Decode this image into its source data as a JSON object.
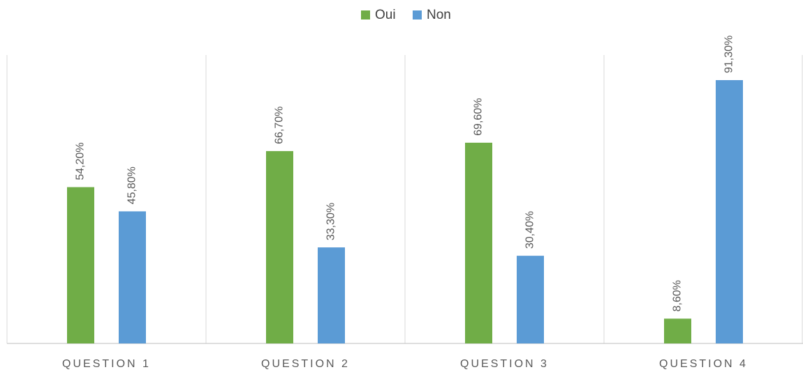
{
  "chart_data": {
    "type": "bar",
    "categories": [
      "QUESTION 1",
      "QUESTION 2",
      "QUESTION 3",
      "QUESTION 4"
    ],
    "series": [
      {
        "name": "Oui",
        "color": "#70ad47",
        "values": [
          54.2,
          66.7,
          69.6,
          8.6
        ],
        "value_labels": [
          "54,20%",
          "66,70%",
          "69,60%",
          "8,60%"
        ]
      },
      {
        "name": "Non",
        "color": "#5b9bd5",
        "values": [
          45.8,
          33.3,
          30.4,
          91.3
        ],
        "value_labels": [
          "45,80%",
          "33,30%",
          "30,40%",
          "91,30%"
        ]
      }
    ],
    "ylim": [
      0,
      100
    ],
    "legend": "top"
  }
}
